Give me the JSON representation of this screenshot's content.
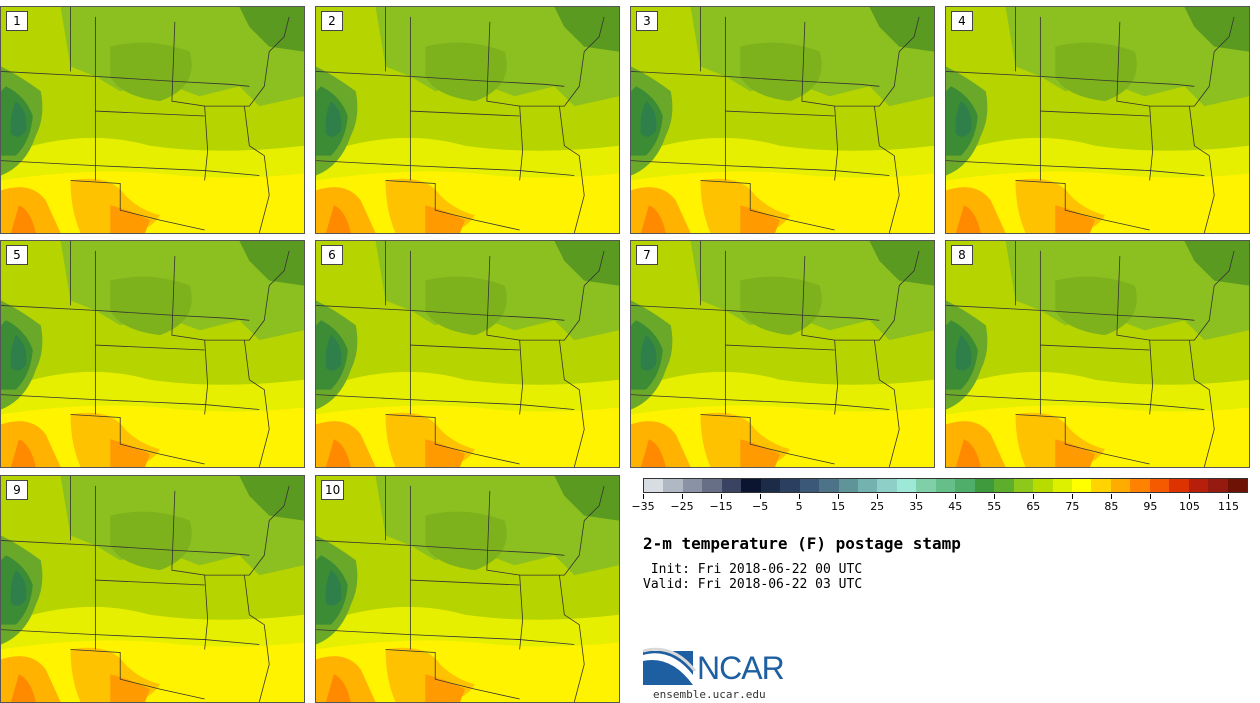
{
  "title": "2-m temperature (F) postage stamp",
  "init_text": " Init: Fri 2018-06-22 00 UTC",
  "valid_text": "Valid: Fri 2018-06-22 03 UTC",
  "members": [
    "1",
    "2",
    "3",
    "4",
    "5",
    "6",
    "7",
    "8",
    "9",
    "10"
  ],
  "colorbar": {
    "colors": [
      "#d7dde3",
      "#b0b8c4",
      "#8a93a6",
      "#666f86",
      "#3a4462",
      "#0c1530",
      "#1b2b48",
      "#2b4060",
      "#3c5878",
      "#4d7388",
      "#5f9498",
      "#74b2b0",
      "#8ed0c8",
      "#9ee8d8",
      "#7fd0a8",
      "#66bf88",
      "#4fae6a",
      "#3e9a3c",
      "#5cae2c",
      "#8ec81a",
      "#b8dc00",
      "#ddf000",
      "#ffff00",
      "#ffd400",
      "#ffac00",
      "#ff8200",
      "#f55a00",
      "#dd3300",
      "#b81f0a",
      "#951a0f",
      "#6e1206"
    ],
    "tick_labels": [
      "−35",
      "−25",
      "−15",
      "−5",
      "5",
      "15",
      "25",
      "35",
      "45",
      "55",
      "65",
      "75",
      "85",
      "95",
      "105",
      "115"
    ]
  },
  "logo": {
    "text": "NCAR",
    "url": "ensemble.ucar.edu"
  }
}
